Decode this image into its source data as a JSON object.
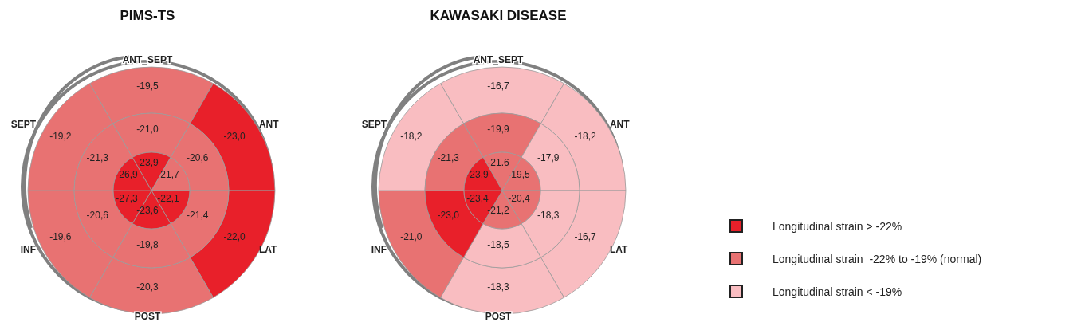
{
  "chart_data": [
    {
      "type": "other",
      "title": "PIMS-TS",
      "categories": [
        "ANT_SEPT",
        "ANT",
        "LAT",
        "POST",
        "INF",
        "SEPT"
      ],
      "series": [
        {
          "values": [
            -19.5,
            -23.0,
            -22.0,
            -20.3,
            -19.6,
            -19.2
          ],
          "value_labels": [
            "-19,5",
            "-23,0",
            "-22,0",
            "-20,3",
            "-19,6",
            "-19,2"
          ],
          "colors": [
            "#e87272",
            "#e8202a",
            "#e8202a",
            "#e87272",
            "#e87272",
            "#e87272"
          ]
        },
        {
          "values": [
            -21.0,
            -20.6,
            -21.4,
            -19.8,
            -20.6,
            -21.3
          ],
          "value_labels": [
            "-21,0",
            "-20,6",
            "-21,4",
            "-19,8",
            "-20,6",
            "-21,3"
          ],
          "colors": [
            "#e87272",
            "#e87272",
            "#e87272",
            "#e87272",
            "#e87272",
            "#e87272"
          ]
        },
        {
          "values": [
            -23.9,
            -21.7,
            -22.1,
            -23.6,
            -27.3,
            -26.9
          ],
          "value_labels": [
            "-23,9",
            "-21,7",
            "-22,1",
            "-23,6",
            "-27,3",
            "-26,9"
          ],
          "colors": [
            "#e8202a",
            "#e87272",
            "#e8202a",
            "#e8202a",
            "#e8202a",
            "#e8202a"
          ]
        }
      ]
    },
    {
      "type": "other",
      "title": "KAWASAKI DISEASE",
      "categories": [
        "ANT_SEPT",
        "ANT",
        "LAT",
        "POST",
        "INF",
        "SEPT"
      ],
      "series": [
        {
          "values": [
            -16.7,
            -18.2,
            -16.7,
            -18.3,
            -21.0,
            -18.2
          ],
          "value_labels": [
            "-16,7",
            "-18,2",
            "-16,7",
            "-18,3",
            "-21,0",
            "-18,2"
          ],
          "colors": [
            "#f9bdc1",
            "#f9bdc1",
            "#f9bdc1",
            "#f9bdc1",
            "#e87272",
            "#f9bdc1"
          ]
        },
        {
          "values": [
            -19.9,
            -17.9,
            -18.3,
            -18.5,
            -23.0,
            -21.3
          ],
          "value_labels": [
            "-19,9",
            "-17,9",
            "-18,3",
            "-18,5",
            "-23,0",
            "-21,3"
          ],
          "colors": [
            "#e87272",
            "#f9bdc1",
            "#f9bdc1",
            "#f9bdc1",
            "#e8202a",
            "#e87272"
          ]
        },
        {
          "values": [
            -21.6,
            -19.5,
            -20.4,
            -21.2,
            -23.4,
            -23.9
          ],
          "value_labels": [
            "-21.6",
            "-19,5",
            "-20,4",
            "-21,2",
            "-23,4",
            "-23,9"
          ],
          "colors": [
            "#e87272",
            "#e87272",
            "#e87272",
            "#e87272",
            "#e8202a",
            "#e8202a"
          ]
        }
      ],
      "bands": [
        {
          "label": "Longitudinal strain > -22%",
          "color": "#e8202a"
        },
        {
          "label": "Longitudinal strain  -22% to -19% (normal)",
          "color": "#e87272"
        },
        {
          "label": "Longitudinal strain < -19%",
          "color": "#f9bdc1"
        }
      ]
    }
  ]
}
